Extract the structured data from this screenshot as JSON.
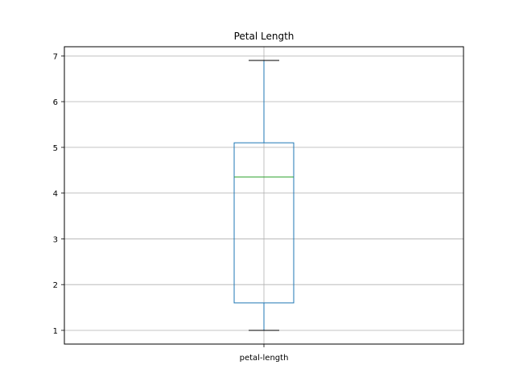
{
  "chart_data": {
    "type": "box",
    "title": "Petal Length",
    "xlabel": "",
    "ylabel": "",
    "categories": [
      "petal-length"
    ],
    "series": [
      {
        "name": "petal-length",
        "min": 1.0,
        "q1": 1.6,
        "median": 4.35,
        "q3": 5.1,
        "max": 6.9
      }
    ],
    "ylim": [
      0.7,
      7.2
    ],
    "yticks": [
      1,
      2,
      3,
      4,
      5,
      6,
      7
    ],
    "grid": true,
    "colors": {
      "box": "#1f77b4",
      "median": "#2ca02c",
      "whisker": "#1f77b4",
      "caps": "#000000",
      "grid": "#b0b0b0",
      "axes": "#000000"
    }
  }
}
